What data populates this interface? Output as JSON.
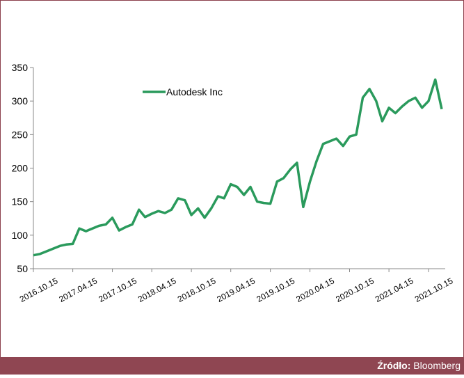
{
  "chart_data": {
    "type": "line",
    "x": [
      "2016.10.15",
      "2016.11.15",
      "2016.12.15",
      "2017.01.15",
      "2017.02.15",
      "2017.03.15",
      "2017.04.15",
      "2017.05.15",
      "2017.06.15",
      "2017.07.15",
      "2017.08.15",
      "2017.09.15",
      "2017.10.15",
      "2017.11.15",
      "2017.12.15",
      "2018.01.15",
      "2018.02.15",
      "2018.03.15",
      "2018.04.15",
      "2018.05.15",
      "2018.06.15",
      "2018.07.15",
      "2018.08.15",
      "2018.09.15",
      "2018.10.15",
      "2018.11.15",
      "2018.12.15",
      "2019.01.15",
      "2019.02.15",
      "2019.03.15",
      "2019.04.15",
      "2019.05.15",
      "2019.06.15",
      "2019.07.15",
      "2019.08.15",
      "2019.09.15",
      "2019.10.15",
      "2019.11.15",
      "2019.12.15",
      "2020.01.15",
      "2020.02.15",
      "2020.03.15",
      "2020.04.15",
      "2020.05.15",
      "2020.06.15",
      "2020.07.15",
      "2020.08.15",
      "2020.09.15",
      "2020.10.15",
      "2020.11.15",
      "2020.12.15",
      "2021.01.15",
      "2021.02.15",
      "2021.03.15",
      "2021.04.15",
      "2021.05.15",
      "2021.06.15",
      "2021.07.15",
      "2021.08.15",
      "2021.09.15",
      "2021.10.15",
      "2021.11.15",
      "2021.12.15"
    ],
    "series": [
      {
        "name": "Autodesk Inc",
        "color": "#2a9a5c",
        "values": [
          70,
          72,
          76,
          80,
          84,
          86,
          87,
          110,
          106,
          110,
          114,
          116,
          126,
          107,
          112,
          116,
          138,
          127,
          132,
          136,
          133,
          138,
          155,
          152,
          130,
          140,
          126,
          140,
          158,
          155,
          176,
          172,
          160,
          172,
          150,
          148,
          147,
          180,
          185,
          198,
          208,
          142,
          180,
          210,
          236,
          240,
          244,
          233,
          247,
          250,
          305,
          318,
          300,
          270,
          290,
          282,
          292,
          300,
          305,
          290,
          300,
          332,
          288
        ]
      }
    ],
    "xlim": [
      "2016.10.15",
      "2021.12.31"
    ],
    "xticks": [
      "2016.10.15",
      "2017.04.15",
      "2017.10.15",
      "2018.04.15",
      "2018.10.15",
      "2019.04.15",
      "2019.10.15",
      "2020.04.15",
      "2020.10.15",
      "2021.04.15",
      "2021.10.15"
    ],
    "ylim": [
      50,
      350
    ],
    "yticks": [
      50,
      100,
      150,
      200,
      250,
      300,
      350
    ],
    "grid": false,
    "legend": "top-left"
  },
  "footer": {
    "label": "Źródło:",
    "source": "Bloomberg"
  }
}
